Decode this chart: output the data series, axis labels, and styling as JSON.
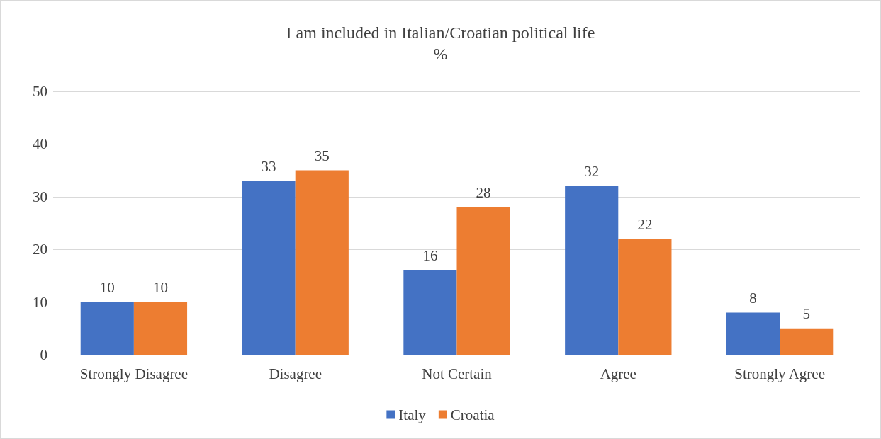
{
  "chart_data": {
    "type": "bar",
    "title": "I am included in Italian/Croatian political life",
    "subtitle": "%",
    "categories": [
      "Strongly Disagree",
      "Disagree",
      "Not Certain",
      "Agree",
      "Strongly Agree"
    ],
    "series": [
      {
        "name": "Italy",
        "color": "#4472c4",
        "values": [
          10,
          33,
          16,
          32,
          8
        ]
      },
      {
        "name": "Croatia",
        "color": "#ed7d31",
        "values": [
          10,
          35,
          28,
          22,
          5
        ]
      }
    ],
    "ylim": [
      0,
      50
    ],
    "yticks": [
      0,
      10,
      20,
      30,
      40,
      50
    ],
    "grid": "y",
    "legend": "bottom",
    "data_labels": true
  }
}
